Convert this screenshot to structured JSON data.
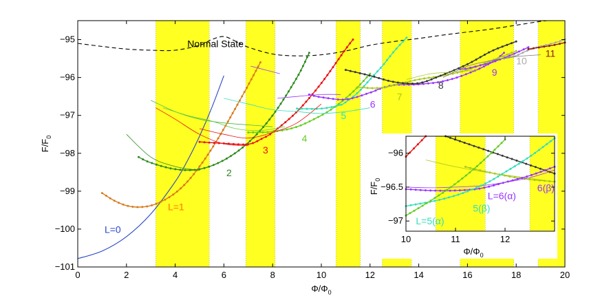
{
  "chart_data": [
    {
      "type": "line",
      "title": "",
      "xlabel": "Φ/Φ",
      "xlabel_sub": "0",
      "ylabel": "F/F",
      "ylabel_sub": "0",
      "xlim": [
        0,
        20
      ],
      "ylim": [
        -101,
        -94.5
      ],
      "xticks": [
        0,
        2,
        4,
        6,
        8,
        10,
        12,
        14,
        16,
        18,
        20
      ],
      "yticks": [
        -101,
        -100,
        -99,
        -98,
        -97,
        -96,
        -95
      ],
      "yellow_bands": [
        [
          3.2,
          5.4
        ],
        [
          6.9,
          8.1
        ],
        [
          10.6,
          11.6
        ],
        [
          12.5,
          13.7
        ],
        [
          15.7,
          17.9
        ],
        [
          18.9,
          20
        ]
      ],
      "annotations": [
        {
          "text": "Normal State",
          "x": 4.5,
          "y": -95.2,
          "color": "#000000"
        },
        {
          "text": "L=0",
          "x": 1.1,
          "y": -100.1,
          "color": "#2a47c8"
        },
        {
          "text": "L=1",
          "x": 3.7,
          "y": -99.5,
          "color": "#ff7700"
        },
        {
          "text": "2",
          "x": 6.1,
          "y": -98.6,
          "color": "#2a8a1a"
        },
        {
          "text": "3",
          "x": 7.6,
          "y": -98.0,
          "color": "#e81010"
        },
        {
          "text": "4",
          "x": 9.2,
          "y": -97.7,
          "color": "#66cc22"
        },
        {
          "text": "5",
          "x": 10.8,
          "y": -97.1,
          "color": "#33ddbb"
        },
        {
          "text": "6",
          "x": 12.0,
          "y": -96.8,
          "color": "#9933ff"
        },
        {
          "text": "7",
          "x": 13.1,
          "y": -96.6,
          "color": "#a8c81a"
        },
        {
          "text": "8",
          "x": 14.8,
          "y": -96.3,
          "color": "#333333"
        },
        {
          "text": "9",
          "x": 17.0,
          "y": -95.95,
          "color": "#9933ff"
        },
        {
          "text": "10",
          "x": 18.0,
          "y": -95.65,
          "color": "#aaaaaa"
        },
        {
          "text": "11",
          "x": 19.2,
          "y": -95.45,
          "color": "#8b1a1a"
        }
      ],
      "series": [
        {
          "name": "Normal State",
          "color": "#000000",
          "dashed": true,
          "x": [
            0,
            1,
            2,
            3,
            4,
            5,
            5.5,
            6,
            6.5,
            7,
            8,
            9,
            10,
            11,
            12,
            13,
            14,
            15,
            16,
            17,
            18,
            19,
            20
          ],
          "values": [
            -95.1,
            -95.18,
            -95.25,
            -95.28,
            -95.28,
            -95.15,
            -95.0,
            -94.92,
            -95.05,
            -95.2,
            -95.38,
            -95.43,
            -95.4,
            -95.3,
            -95.15,
            -95.05,
            -94.97,
            -94.88,
            -94.8,
            -94.72,
            -94.62,
            -94.52,
            -94.45
          ]
        },
        {
          "name": "L=0",
          "color": "#2a47c8",
          "x": [
            0,
            1,
            2,
            3,
            4,
            4.5,
            5,
            5.5,
            6
          ],
          "values": [
            -100.78,
            -100.58,
            -100.2,
            -99.6,
            -98.75,
            -98.2,
            -97.55,
            -96.8,
            -95.95
          ]
        },
        {
          "name": "L=1",
          "color": "#d97a1a",
          "markers": true,
          "x": [
            1,
            1.5,
            2,
            2.5,
            3,
            3.5,
            4,
            4.5,
            5,
            5.5,
            6,
            6.5,
            7,
            7.5
          ],
          "values": [
            -99.05,
            -99.25,
            -99.38,
            -99.42,
            -99.38,
            -99.25,
            -99.05,
            -98.75,
            -98.35,
            -97.88,
            -97.35,
            -96.78,
            -96.2,
            -95.6
          ]
        },
        {
          "name": "L=2",
          "color": "#2a8a1a",
          "markers": true,
          "x": [
            2.5,
            3,
            4,
            5,
            6,
            7,
            8,
            9,
            9.5
          ],
          "values": [
            -98.1,
            -98.25,
            -98.42,
            -98.42,
            -98.18,
            -97.72,
            -97.0,
            -96.0,
            -95.35
          ]
        },
        {
          "name": "L=3",
          "color": "#e81010",
          "markers": true,
          "x": [
            5,
            6,
            7,
            7.6,
            8,
            9,
            10,
            11,
            11.3
          ],
          "values": [
            -97.7,
            -97.74,
            -97.76,
            -97.6,
            -97.45,
            -96.9,
            -96.15,
            -95.25,
            -95.0
          ]
        },
        {
          "name": "L=4",
          "color": "#66cc22",
          "markers": true,
          "x": [
            7,
            8,
            9,
            10,
            10.5,
            11,
            11.5,
            12
          ],
          "values": [
            -97.45,
            -97.43,
            -97.3,
            -97.0,
            -96.8,
            -96.55,
            -96.25,
            -95.9
          ]
        },
        {
          "name": "L=5",
          "color": "#33ddbb",
          "markers": true,
          "x": [
            9,
            10,
            10.75,
            11,
            11.5,
            12,
            12.5,
            13,
            13.5
          ],
          "values": [
            -96.82,
            -96.82,
            -96.73,
            -96.65,
            -96.4,
            -96.05,
            -95.7,
            -95.3,
            -94.95
          ]
        },
        {
          "name": "L=6",
          "color": "#9933ff",
          "markers": true,
          "x": [
            9.5,
            10,
            11,
            12,
            12.4,
            13,
            14,
            15,
            16,
            17,
            17.5
          ],
          "values": [
            -96.45,
            -96.52,
            -96.58,
            -96.4,
            -96.3,
            -96.2,
            -96.18,
            -96.1,
            -95.9,
            -95.6,
            -95.35
          ]
        },
        {
          "name": "L=7",
          "color": "#a8c81a",
          "markers": true,
          "x": [
            11.5,
            12,
            12.5,
            13,
            14,
            15,
            16,
            17,
            18
          ],
          "values": [
            -96.25,
            -96.28,
            -96.27,
            -96.2,
            -96.05,
            -95.95,
            -95.8,
            -95.55,
            -95.3
          ]
        },
        {
          "name": "L=8",
          "color": "#333333",
          "markers": true,
          "x": [
            11,
            12,
            13,
            14,
            14.9,
            16,
            17,
            18
          ],
          "values": [
            -95.8,
            -95.95,
            -96.12,
            -96.15,
            -95.95,
            -95.65,
            -95.3,
            -95.05
          ]
        },
        {
          "name": "L=9",
          "color": "#9933ff",
          "markers": true,
          "x": [
            15.7,
            16,
            17,
            17.5,
            18,
            18.5
          ],
          "values": [
            -95.78,
            -95.76,
            -95.6,
            -95.48,
            -95.35,
            -95.2
          ]
        },
        {
          "name": "L=10",
          "color": "#aaaaaa",
          "markers": true,
          "x": [
            17.5,
            18,
            18.5,
            19,
            19.5,
            20
          ],
          "values": [
            -95.5,
            -95.42,
            -95.28,
            -95.18,
            -95.1,
            -95.0
          ]
        },
        {
          "name": "L=11",
          "color": "#8b1a1a",
          "markers": true,
          "x": [
            18.5,
            19,
            19.5,
            20
          ],
          "values": [
            -95.25,
            -95.2,
            -95.15,
            -95.08
          ]
        },
        {
          "name": "thin-green-a",
          "color": "#44bb44",
          "thin": true,
          "x": [
            3,
            4,
            5,
            6,
            7,
            8
          ],
          "values": [
            -96.6,
            -96.9,
            -97.1,
            -97.2,
            -97.25,
            -97.3
          ]
        },
        {
          "name": "thin-green-b",
          "color": "#66cc44",
          "thin": true,
          "x": [
            3.5,
            4.5,
            5.5,
            6.5,
            7.5,
            8.5
          ],
          "values": [
            -96.8,
            -97.0,
            -97.15,
            -97.35,
            -97.4,
            -97.3
          ]
        },
        {
          "name": "thin-red-a",
          "color": "#e81010",
          "thin": true,
          "x": [
            3.2,
            4,
            5,
            6,
            7
          ],
          "values": [
            -96.8,
            -97.1,
            -97.5,
            -97.75,
            -97.8
          ]
        },
        {
          "name": "thin-red-b",
          "color": "#e81010",
          "thin": true,
          "x": [
            5,
            6,
            7,
            8,
            9,
            10
          ],
          "values": [
            -97.35,
            -97.5,
            -97.6,
            -97.45,
            -97.2,
            -96.7
          ]
        },
        {
          "name": "thin-green-dark",
          "color": "#2a8a1a",
          "thin": true,
          "x": [
            2,
            3,
            4,
            5
          ],
          "values": [
            -97.5,
            -98.1,
            -98.35,
            -98.45
          ]
        },
        {
          "name": "thin-cyan",
          "color": "#33ddbb",
          "thin": true,
          "x": [
            6,
            7,
            8,
            9,
            10,
            11,
            12
          ],
          "values": [
            -96.55,
            -96.7,
            -96.85,
            -96.9,
            -96.95,
            -96.9,
            -96.8
          ]
        },
        {
          "name": "thin-purple",
          "color": "#9933ff",
          "thin": true,
          "x": [
            8.2,
            9,
            10,
            10.8
          ],
          "values": [
            -96.55,
            -96.5,
            -96.45,
            -96.45
          ]
        },
        {
          "name": "thin-purple-top",
          "color": "#9933ff",
          "thin": true,
          "x": [
            7.1,
            7.7,
            8.3
          ],
          "values": [
            -95.7,
            -95.8,
            -95.9
          ]
        },
        {
          "name": "thin-grey",
          "color": "#777777",
          "thin": true,
          "x": [
            15,
            16,
            17,
            18,
            19
          ],
          "values": [
            -96.0,
            -95.7,
            -95.55,
            -95.45,
            -95.4
          ]
        },
        {
          "name": "thin-olive",
          "color": "#a8c81a",
          "thin": true,
          "x": [
            13.5,
            14.5,
            15.5,
            16.5
          ],
          "values": [
            -96.05,
            -95.9,
            -95.85,
            -95.8
          ]
        }
      ]
    },
    {
      "type": "line",
      "title": "",
      "xlabel": "Φ/Φ",
      "xlabel_sub": "0",
      "ylabel": "F/F",
      "ylabel_sub": "0",
      "xlim": [
        10,
        13
      ],
      "ylim": [
        -97.15,
        -95.75
      ],
      "xticks": [
        10,
        11,
        12
      ],
      "yticks": [
        -97,
        -96.5,
        -96
      ],
      "yellow_bands": [
        [
          10.6,
          11.6
        ],
        [
          12.5,
          13
        ]
      ],
      "annotations": [
        {
          "text": "L=6(α)",
          "x": 11.65,
          "y": -96.68,
          "color": "#9933ff"
        },
        {
          "text": "6(β)",
          "x": 12.65,
          "y": -96.56,
          "color": "#9933ff"
        },
        {
          "text": "5(β)",
          "x": 11.35,
          "y": -96.86,
          "color": "#33ddbb"
        },
        {
          "text": "L=5(α)",
          "x": 10.2,
          "y": -97.05,
          "color": "#33ddbb"
        }
      ],
      "series": [
        {
          "name": "3-inset",
          "color": "#e81010",
          "markers": true,
          "x": [
            10,
            10.2,
            10.4
          ],
          "values": [
            -96.05,
            -95.9,
            -95.75
          ]
        },
        {
          "name": "8-inset",
          "color": "#333333",
          "markers": true,
          "x": [
            10.8,
            11.4,
            12,
            12.6,
            13
          ],
          "values": [
            -95.75,
            -95.9,
            -96.05,
            -96.2,
            -96.3
          ]
        },
        {
          "name": "7-inset",
          "color": "#a8c81a",
          "markers": true,
          "x": [
            11.2,
            11.6,
            12,
            12.4,
            13
          ],
          "values": [
            -96.2,
            -96.27,
            -96.33,
            -96.38,
            -96.42
          ]
        },
        {
          "name": "7b-inset",
          "color": "#a8c81a",
          "thin": true,
          "x": [
            10.4,
            11,
            11.6,
            12.2,
            12.8
          ],
          "values": [
            -96.1,
            -96.2,
            -96.28,
            -96.34,
            -96.4
          ]
        },
        {
          "name": "6(α)",
          "color": "#9933ff",
          "markers": true,
          "x": [
            10,
            10.5,
            11,
            11.5,
            12,
            12.5,
            13
          ],
          "values": [
            -96.53,
            -96.55,
            -96.55,
            -96.52,
            -96.43,
            -96.33,
            -96.2
          ]
        },
        {
          "name": "6(β)",
          "color": "#9933ff",
          "thin": true,
          "x": [
            10,
            10.5,
            11,
            11.5,
            12,
            12.5,
            13
          ],
          "values": [
            -96.5,
            -96.51,
            -96.5,
            -96.48,
            -96.43,
            -96.36,
            -96.25
          ]
        },
        {
          "name": "5(β)",
          "color": "#33ddbb",
          "markers": true,
          "x": [
            10,
            10.6,
            11.1,
            11.6,
            12,
            12.5,
            13
          ],
          "values": [
            -96.78,
            -96.7,
            -96.6,
            -96.45,
            -96.28,
            -96.05,
            -95.78
          ]
        },
        {
          "name": "5(α)",
          "color": "#66cc22",
          "markers": true,
          "x": [
            10,
            10.5,
            11,
            11.5,
            12
          ],
          "values": [
            -96.92,
            -96.7,
            -96.45,
            -96.15,
            -95.8
          ]
        }
      ]
    }
  ]
}
